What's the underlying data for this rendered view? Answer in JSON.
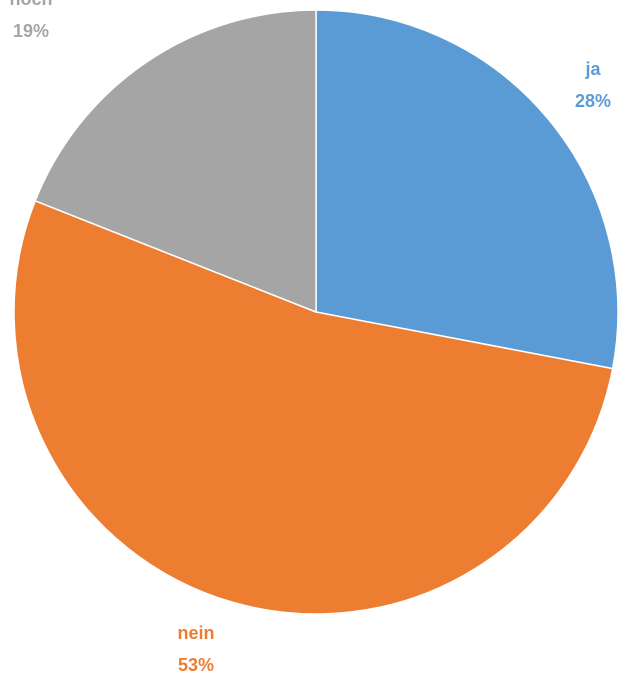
{
  "chart_data": {
    "type": "pie",
    "start_angle_deg": 0,
    "direction": "clockwise",
    "slices": [
      {
        "name": "ja",
        "percent_label": "28%",
        "value": 28,
        "color": "#5B9BD5"
      },
      {
        "name": "nein",
        "percent_label": "53%",
        "value": 53,
        "color": "#ED7D31"
      },
      {
        "name": "noch",
        "percent_label": "19%",
        "value": 19,
        "color": "#A5A5A5"
      }
    ]
  }
}
